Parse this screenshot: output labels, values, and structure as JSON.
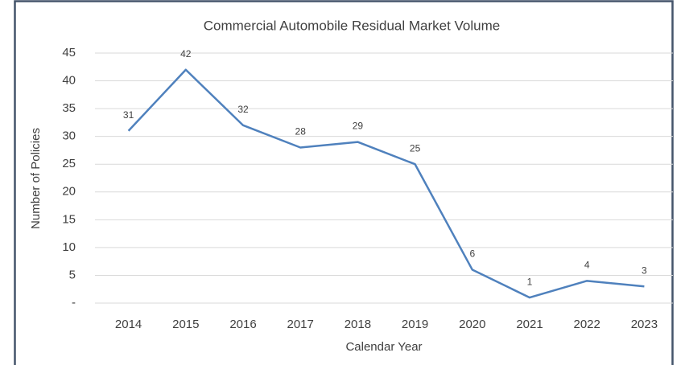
{
  "chart_data": {
    "type": "line",
    "title": "Commercial Automobile Residual Market Volume",
    "xlabel": "Calendar Year",
    "ylabel": "Number of Policies",
    "categories": [
      "2014",
      "2015",
      "2016",
      "2017",
      "2018",
      "2019",
      "2020",
      "2021",
      "2022",
      "2023"
    ],
    "values": [
      31,
      42,
      32,
      28,
      29,
      25,
      6,
      1,
      4,
      3
    ],
    "color": "#4f81bd",
    "ylim": [
      0,
      45
    ],
    "yticks": [
      {
        "value": 0,
        "label": "-"
      },
      5,
      10,
      15,
      20,
      25,
      30,
      35,
      40,
      45
    ],
    "grid": true
  }
}
